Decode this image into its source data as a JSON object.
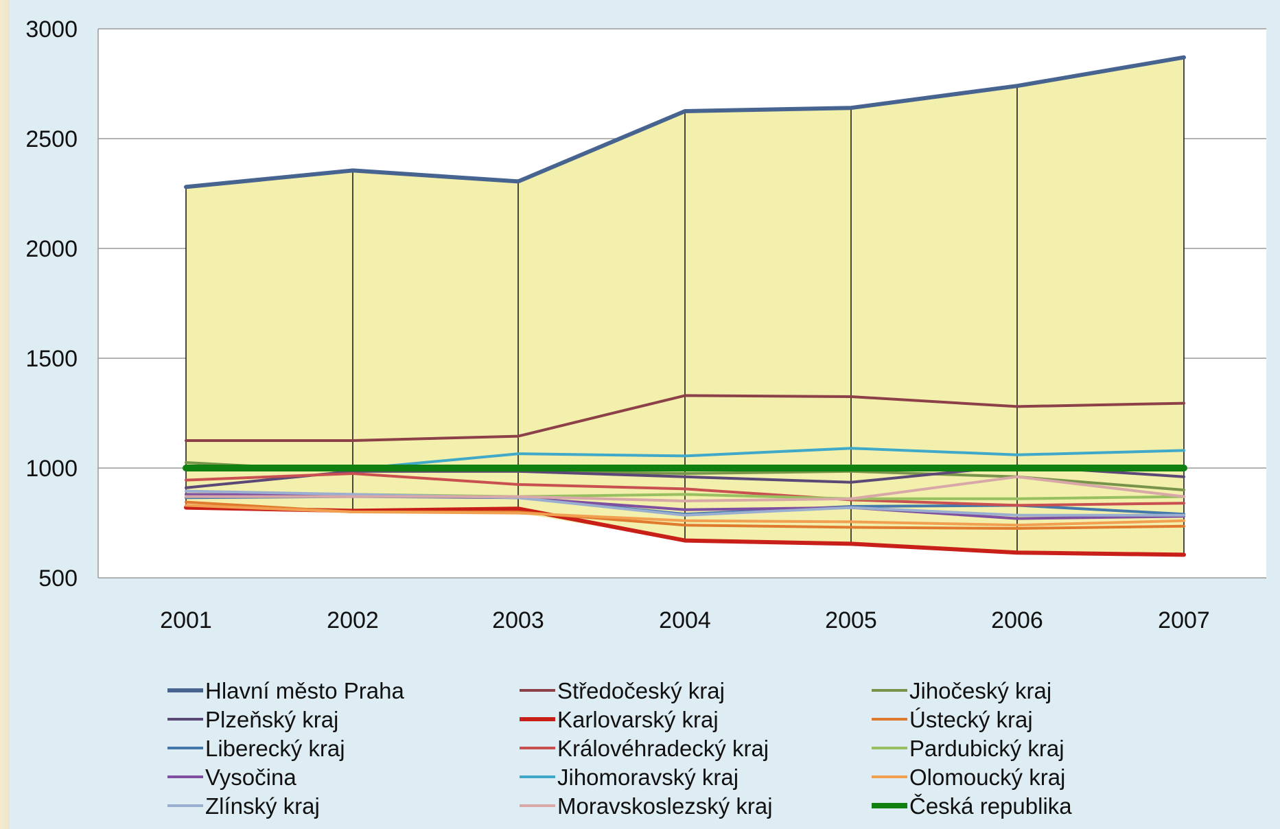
{
  "chart_data": {
    "type": "line",
    "title": "",
    "xlabel": "",
    "ylabel": "",
    "categories": [
      "2001",
      "2002",
      "2003",
      "2004",
      "2005",
      "2006",
      "2007"
    ],
    "ylim": [
      500,
      3000
    ],
    "yticks": [
      "500",
      "1000",
      "1500",
      "2000",
      "2500",
      "3000"
    ],
    "grid": "horizontal",
    "area_fill": "#f3f0ad",
    "legend_position": "bottom",
    "series": [
      {
        "name": "Hlavní město Praha",
        "color": "#46648f",
        "width": 6,
        "values": [
          2280,
          2355,
          2305,
          2625,
          2640,
          2740,
          2870
        ]
      },
      {
        "name": "Středočeský kraj",
        "color": "#8c4048",
        "width": 4,
        "values": [
          1125,
          1125,
          1145,
          1330,
          1325,
          1280,
          1295
        ]
      },
      {
        "name": "Jihočeský kraj",
        "color": "#77944a",
        "width": 4,
        "values": [
          1025,
          985,
          985,
          975,
          985,
          960,
          900
        ]
      },
      {
        "name": "Plzeňský kraj",
        "color": "#5b4877",
        "width": 4,
        "values": [
          910,
          985,
          985,
          960,
          935,
          1010,
          960
        ]
      },
      {
        "name": "Karlovarský kraj",
        "color": "#c82018",
        "width": 6,
        "values": [
          820,
          805,
          815,
          670,
          655,
          615,
          605
        ]
      },
      {
        "name": "Ústecký kraj",
        "color": "#e07a2e",
        "width": 4,
        "values": [
          845,
          800,
          800,
          740,
          730,
          725,
          735
        ]
      },
      {
        "name": "Liberecký kraj",
        "color": "#4477aa",
        "width": 4,
        "values": [
          865,
          870,
          865,
          790,
          825,
          830,
          790
        ]
      },
      {
        "name": "Královéhradecký kraj",
        "color": "#c85050",
        "width": 4,
        "values": [
          945,
          975,
          925,
          905,
          855,
          830,
          840
        ]
      },
      {
        "name": "Pardubický kraj",
        "color": "#99c060",
        "width": 4,
        "values": [
          870,
          880,
          870,
          880,
          860,
          860,
          870
        ]
      },
      {
        "name": "Vysočina",
        "color": "#8050a0",
        "width": 4,
        "values": [
          880,
          875,
          865,
          810,
          820,
          770,
          780
        ]
      },
      {
        "name": "Jihomoravský kraj",
        "color": "#40a8c8",
        "width": 4,
        "values": [
          995,
          995,
          1065,
          1055,
          1090,
          1060,
          1080
        ]
      },
      {
        "name": "Olomoucký kraj",
        "color": "#f0a050",
        "width": 4,
        "values": [
          830,
          800,
          795,
          760,
          755,
          740,
          760
        ]
      },
      {
        "name": "Zlínský kraj",
        "color": "#9aaed0",
        "width": 4,
        "values": [
          895,
          880,
          865,
          785,
          820,
          785,
          785
        ]
      },
      {
        "name": "Moravskoslezský kraj",
        "color": "#d8a8a8",
        "width": 4,
        "values": [
          870,
          870,
          870,
          850,
          860,
          960,
          870
        ]
      },
      {
        "name": "Česká republika",
        "color": "#108010",
        "width": 10,
        "values": [
          1000,
          1000,
          1000,
          1000,
          1000,
          1000,
          1000
        ]
      }
    ]
  }
}
